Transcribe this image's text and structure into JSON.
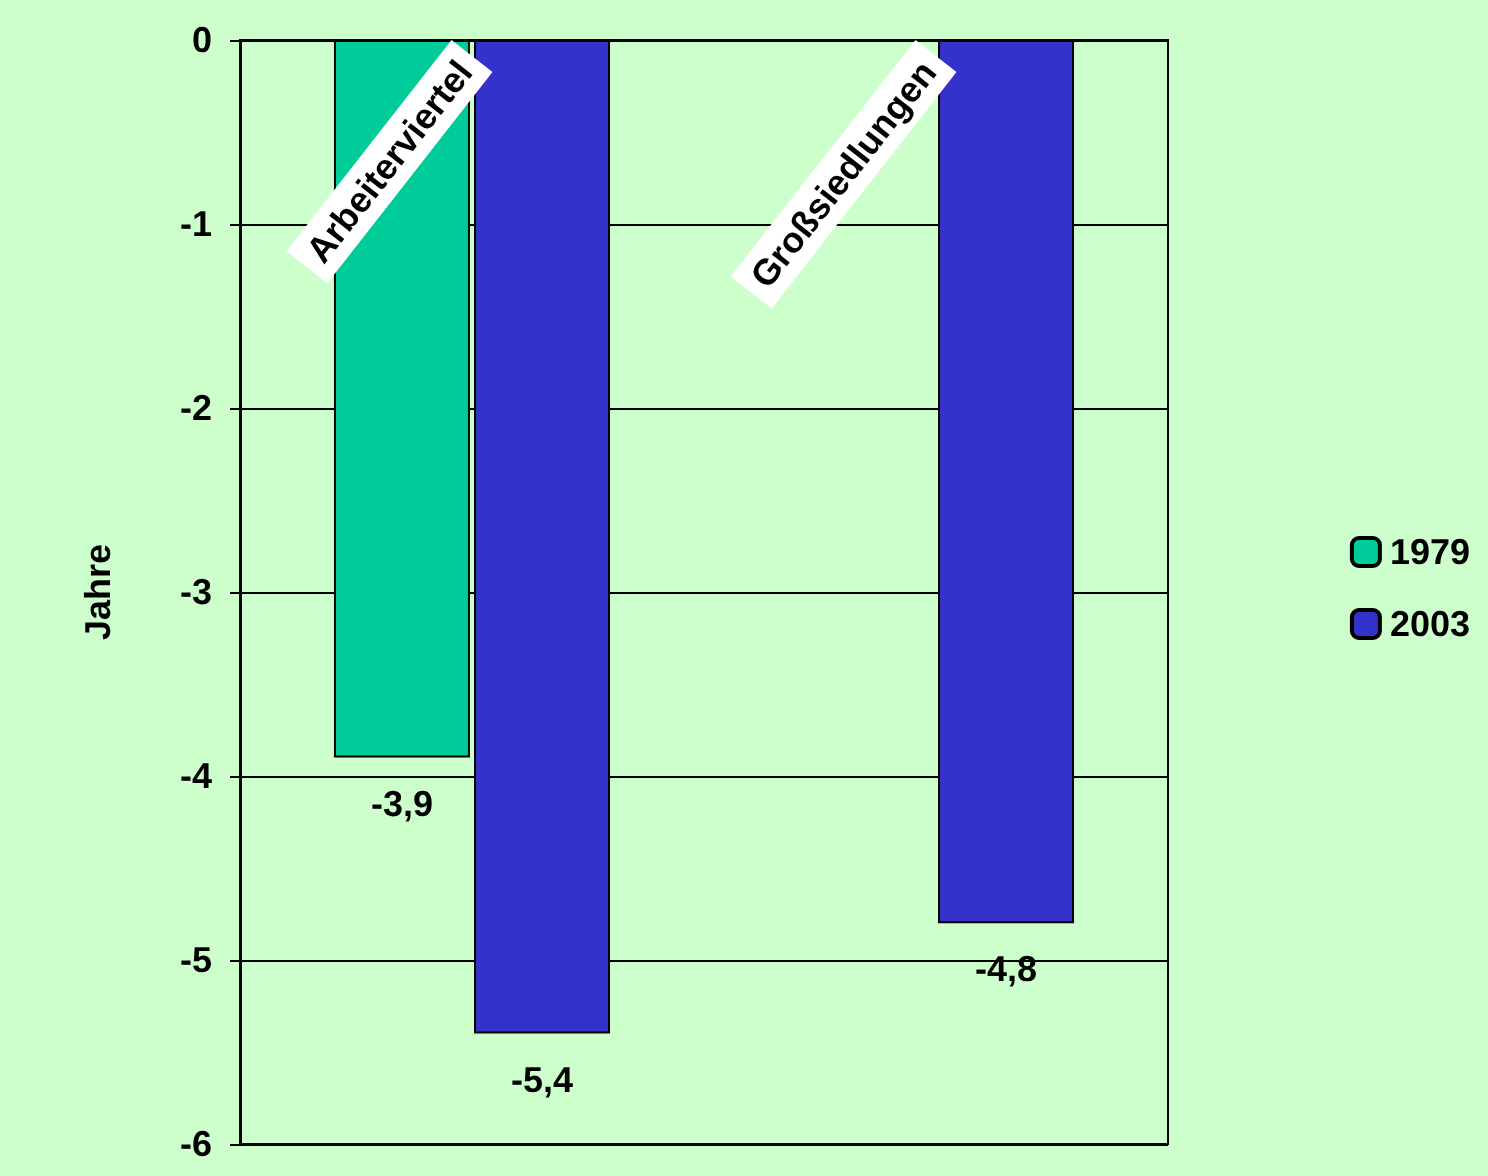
{
  "chart_data": {
    "type": "bar",
    "ylabel": "Jahre",
    "categories": [
      "Arbeiterviertel",
      "Großsiedlungen"
    ],
    "series": [
      {
        "name": "1979",
        "color": "#00cc99",
        "values": [
          -3.9,
          null
        ],
        "value_labels": [
          "-3,9",
          null
        ]
      },
      {
        "name": "2003",
        "color": "#3333cc",
        "values": [
          -5.4,
          -4.8
        ],
        "value_labels": [
          "-5,4",
          "-4,8"
        ]
      }
    ],
    "ylim": [
      -6,
      0
    ],
    "yticks": [
      -6,
      -5,
      -4,
      -3,
      -2,
      -1,
      0
    ],
    "grid": "y",
    "legend": "right"
  }
}
